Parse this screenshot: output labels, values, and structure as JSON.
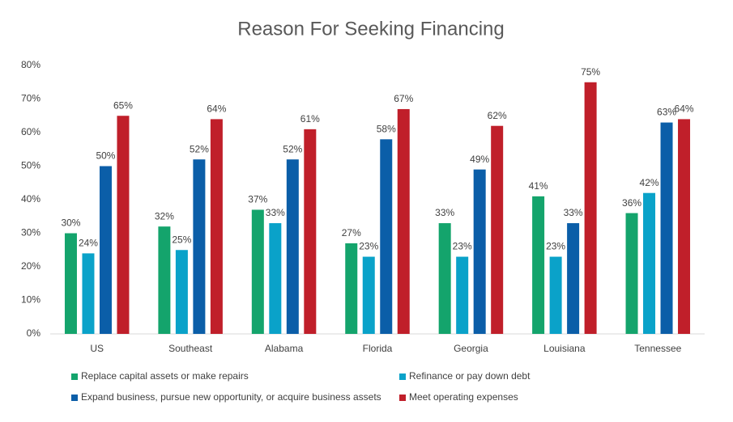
{
  "chart_data": {
    "type": "bar",
    "title": "Reason For Seeking Financing",
    "categories": [
      "US",
      "Southeast",
      "Alabama",
      "Florida",
      "Georgia",
      "Louisiana",
      "Tennessee"
    ],
    "series": [
      {
        "name": "Replace capital assets or make repairs",
        "color": "#14a46c",
        "values": [
          30,
          32,
          37,
          27,
          33,
          41,
          36
        ],
        "value_labels": [
          "30%",
          "32%",
          "37%",
          "27%",
          "33%",
          "41%",
          "36%"
        ]
      },
      {
        "name": "Refinance or pay down debt",
        "color": "#0aa2c9",
        "values": [
          24,
          25,
          33,
          23,
          23,
          23,
          42
        ],
        "value_labels": [
          "24%",
          "25%",
          "33%",
          "23%",
          "23%",
          "23%",
          "42%"
        ]
      },
      {
        "name": "Expand business, pursue new opportunity, or acquire business assets",
        "color": "#0b5ea8",
        "values": [
          50,
          52,
          52,
          58,
          49,
          33,
          63
        ],
        "value_labels": [
          "50%",
          "52%",
          "52%",
          "58%",
          "49%",
          "33%",
          "63%"
        ]
      },
      {
        "name": "Meet operating expenses",
        "color": "#c01f2a",
        "values": [
          65,
          64,
          61,
          67,
          62,
          75,
          64
        ],
        "value_labels": [
          "65%",
          "64%",
          "61%",
          "67%",
          "62%",
          "75%",
          "64%"
        ]
      }
    ],
    "ylim": [
      0,
      80
    ],
    "yticks": [
      {
        "value": 0,
        "label": "0%"
      },
      {
        "value": 10,
        "label": "10%"
      },
      {
        "value": 20,
        "label": "20%"
      },
      {
        "value": 30,
        "label": "30%"
      },
      {
        "value": 40,
        "label": "40%"
      },
      {
        "value": 50,
        "label": "50%"
      },
      {
        "value": 60,
        "label": "60%"
      },
      {
        "value": 70,
        "label": "70%"
      },
      {
        "value": 80,
        "label": "80%"
      }
    ],
    "grid": false,
    "legend": "bottom"
  }
}
